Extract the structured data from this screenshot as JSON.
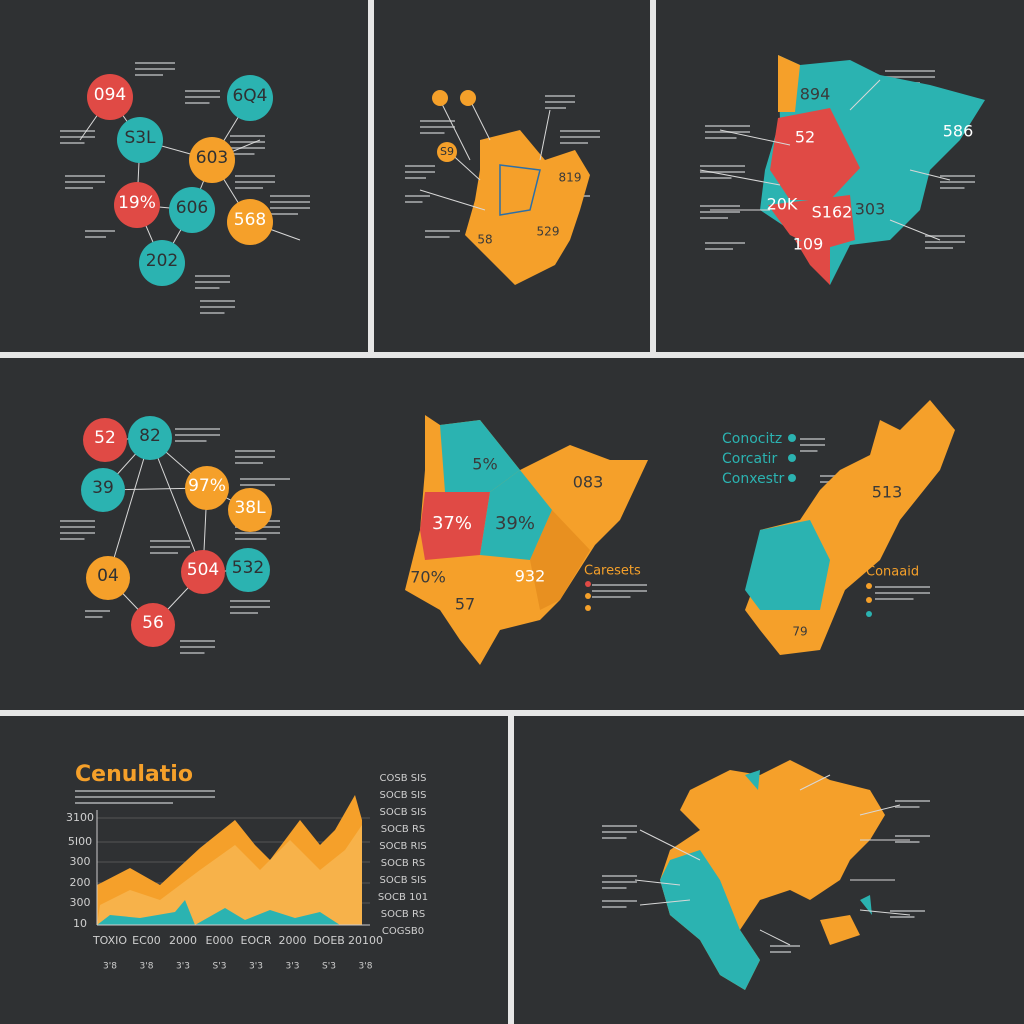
{
  "network_top": {
    "circles": [
      "094",
      "6Q4",
      "S3L",
      "603",
      "19%",
      "606",
      "568",
      "202"
    ]
  },
  "map_top_middle": {
    "labels": [
      "S9",
      "819",
      "58",
      "529"
    ]
  },
  "map_top_right": {
    "labels": [
      "894",
      "52",
      "586",
      "20K",
      "S162",
      "303",
      "109"
    ]
  },
  "network_middle": {
    "circles": [
      "52",
      "82",
      "39",
      "97%",
      "38L",
      "04",
      "504",
      "532",
      "56"
    ]
  },
  "map_middle": {
    "labels": [
      "5%",
      "37%",
      "39%",
      "083",
      "70%",
      "932",
      "57"
    ],
    "legend_title": "Caresets"
  },
  "map_middle_right": {
    "headings": [
      "Conocitz",
      "Corcatir",
      "Conxestr"
    ],
    "legend_title": "Conaaid",
    "labels": [
      "513",
      "79"
    ]
  },
  "area_chart": {
    "title": "Cenulatio",
    "y_labels": [
      "3100",
      "5I00",
      "300",
      "200",
      "300",
      "10"
    ],
    "x_labels": [
      "TOXIO",
      "EC00",
      "2000",
      "E000",
      "EOCR",
      "2000",
      "DOEB",
      "20100"
    ],
    "x_sublabels": [
      "3'8",
      "3'8",
      "3'3",
      "S'3",
      "3'3",
      "3'3",
      "S'3",
      "3'8"
    ],
    "side_labels": [
      "COSB SIS",
      "SOCB SIS",
      "SOCB SIS",
      "SOCB RS",
      "SOCB RIS",
      "SOCB RS",
      "SOCB SIS",
      "SOCB 101",
      "SOCB RS",
      "COGSB0"
    ]
  }
}
